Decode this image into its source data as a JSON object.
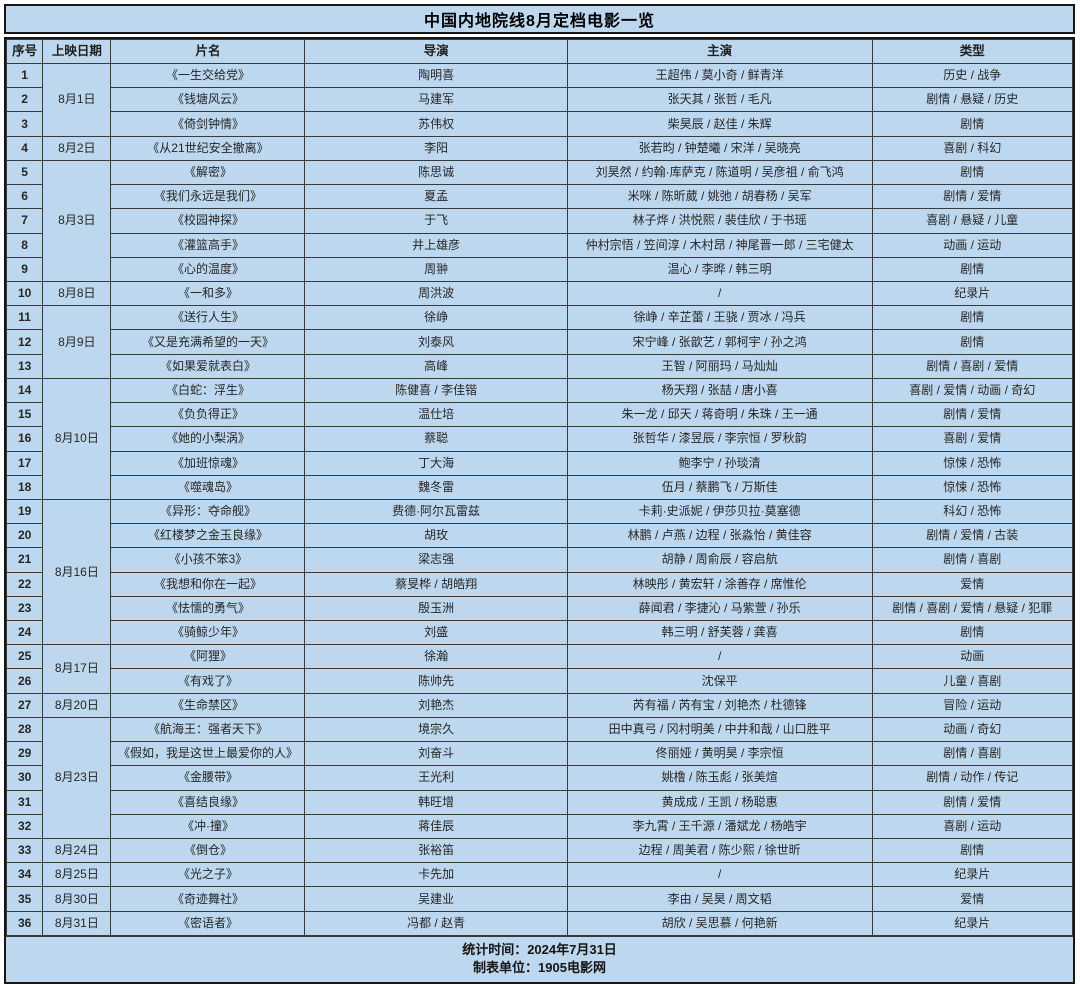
{
  "title": "中国内地院线8月定档电影一览",
  "footer": {
    "line1": "统计时间：2024年7月31日",
    "line2": "制表单位：1905电影网"
  },
  "colors": {
    "cell_background": "#bdd7ee",
    "border": "#161616",
    "inner_border": "#3a3a3a",
    "text": "#262626",
    "page_background": "#ffffff"
  },
  "table": {
    "columns": [
      "序号",
      "上映日期",
      "片名",
      "导演",
      "主演",
      "类型"
    ],
    "rows": [
      {
        "no": "1",
        "date": "8月1日",
        "span": 3,
        "film": "《一生交给党》",
        "dir": "陶明喜",
        "cast": "王超伟 / 莫小奇 / 鲜青洋",
        "genre": "历史 / 战争"
      },
      {
        "no": "2",
        "date": null,
        "film": "《钱塘风云》",
        "dir": "马建军",
        "cast": "张天其 / 张哲 / 毛凡",
        "genre": "剧情 / 悬疑 / 历史"
      },
      {
        "no": "3",
        "date": null,
        "film": "《倚剑钟情》",
        "dir": "苏伟权",
        "cast": "柴昊辰 / 赵佳 / 朱辉",
        "genre": "剧情"
      },
      {
        "no": "4",
        "date": "8月2日",
        "span": 1,
        "film": "《从21世纪安全撤离》",
        "dir": "李阳",
        "cast": "张若昀 / 钟楚曦 / 宋洋 / 吴晓亮",
        "genre": "喜剧 / 科幻"
      },
      {
        "no": "5",
        "date": "8月3日",
        "span": 5,
        "film": "《解密》",
        "dir": "陈思诚",
        "cast": "刘昊然 / 约翰·库萨克 / 陈道明 / 吴彦祖 / 俞飞鸿",
        "genre": "剧情"
      },
      {
        "no": "6",
        "date": null,
        "film": "《我们永远是我们》",
        "dir": "夏孟",
        "cast": "米咪 / 陈昕葳 / 姚弛 / 胡春杨 / 吴军",
        "genre": "剧情 / 爱情"
      },
      {
        "no": "7",
        "date": null,
        "film": "《校园神探》",
        "dir": "于飞",
        "cast": "林子烨 / 洪悦熙 / 裴佳欣 / 于书瑶",
        "genre": "喜剧 / 悬疑 / 儿童"
      },
      {
        "no": "8",
        "date": null,
        "film": "《灌篮高手》",
        "dir": "井上雄彦",
        "cast": "仲村宗悟 / 笠间淳 / 木村昂 / 神尾晋一郎 / 三宅健太",
        "genre": "动画 / 运动"
      },
      {
        "no": "9",
        "date": null,
        "film": "《心的温度》",
        "dir": "周翀",
        "cast": "温心 / 李晔 / 韩三明",
        "genre": "剧情"
      },
      {
        "no": "10",
        "date": "8月8日",
        "span": 1,
        "film": "《一和多》",
        "dir": "周洪波",
        "cast": "/",
        "genre": "纪录片"
      },
      {
        "no": "11",
        "date": "8月9日",
        "span": 3,
        "film": "《送行人生》",
        "dir": "徐峥",
        "cast": "徐峥 / 辛芷蕾 / 王骁 / 贾冰 / 冯兵",
        "genre": "剧情"
      },
      {
        "no": "12",
        "date": null,
        "film": "《又是充满希望的一天》",
        "dir": "刘泰风",
        "cast": "宋宁峰 / 张歆艺 / 郭柯宇 / 孙之鸿",
        "genre": "剧情"
      },
      {
        "no": "13",
        "date": null,
        "film": "《如果爱就表白》",
        "dir": "高峰",
        "cast": "王智 / 阿丽玛 / 马灿灿",
        "genre": "剧情 / 喜剧 / 爱情"
      },
      {
        "no": "14",
        "date": "8月10日",
        "span": 5,
        "film": "《白蛇：浮生》",
        "dir": "陈健喜 / 李佳锴",
        "cast": "杨天翔 / 张喆 / 唐小喜",
        "genre": "喜剧 / 爱情 / 动画 / 奇幻"
      },
      {
        "no": "15",
        "date": null,
        "film": "《负负得正》",
        "dir": "温仕培",
        "cast": "朱一龙 / 邱天 / 蒋奇明 / 朱珠 / 王一通",
        "genre": "剧情 / 爱情"
      },
      {
        "no": "16",
        "date": null,
        "film": "《她的小梨涡》",
        "dir": "蔡聪",
        "cast": "张哲华 / 漆昱辰 / 李宗恒 / 罗秋韵",
        "genre": "喜剧 / 爱情"
      },
      {
        "no": "17",
        "date": null,
        "film": "《加班惊魂》",
        "dir": "丁大海",
        "cast": "鲍李宁 / 孙琰清",
        "genre": "惊悚 / 恐怖"
      },
      {
        "no": "18",
        "date": null,
        "film": "《噬魂岛》",
        "dir": "魏冬雷",
        "cast": "伍月 / 蔡鹏飞 / 万斯佳",
        "genre": "惊悚 / 恐怖"
      },
      {
        "no": "19",
        "date": "8月16日",
        "span": 6,
        "film": "《异形：夺命舰》",
        "dir": "费德·阿尔瓦雷兹",
        "cast": "卡莉·史派妮 / 伊莎贝拉·莫塞德",
        "genre": "科幻 / 恐怖"
      },
      {
        "no": "20",
        "date": null,
        "film": "《红楼梦之金玉良缘》",
        "dir": "胡玫",
        "cast": "林鹏 / 卢燕 / 边程 / 张淼怡 / 黄佳容",
        "genre": "剧情 / 爱情 / 古装"
      },
      {
        "no": "21",
        "date": null,
        "film": "《小孩不笨3》",
        "dir": "梁志强",
        "cast": "胡静 / 周俞辰 / 容启航",
        "genre": "剧情 / 喜剧"
      },
      {
        "no": "22",
        "date": null,
        "film": "《我想和你在一起》",
        "dir": "蔡旻桦 / 胡皓翔",
        "cast": "林映彤 / 黄宏轩 / 涂善存 / 席惟伦",
        "genre": "爱情"
      },
      {
        "no": "23",
        "date": null,
        "film": "《怯懦的勇气》",
        "dir": "殷玉洲",
        "cast": "薛闻君 / 李捷沁 / 马紫萱 / 孙乐",
        "genre": "剧情 / 喜剧 / 爱情 / 悬疑 / 犯罪"
      },
      {
        "no": "24",
        "date": null,
        "film": "《骑鲸少年》",
        "dir": "刘盛",
        "cast": "韩三明 / 舒芙蓉 / 龚喜",
        "genre": "剧情"
      },
      {
        "no": "25",
        "date": "8月17日",
        "span": 2,
        "film": "《阿狸》",
        "dir": "徐瀚",
        "cast": "/",
        "genre": "动画"
      },
      {
        "no": "26",
        "date": null,
        "film": "《有戏了》",
        "dir": "陈帅先",
        "cast": "沈保平",
        "genre": "儿童 / 喜剧"
      },
      {
        "no": "27",
        "date": "8月20日",
        "span": 1,
        "film": "《生命禁区》",
        "dir": "刘艳杰",
        "cast": "芮有福 / 芮有宝 / 刘艳杰 / 杜德锋",
        "genre": "冒险 / 运动"
      },
      {
        "no": "28",
        "date": "8月23日",
        "span": 5,
        "film": "《航海王：强者天下》",
        "dir": "境宗久",
        "cast": "田中真弓 / 冈村明美 / 中井和哉 / 山口胜平",
        "genre": "动画 / 奇幻"
      },
      {
        "no": "29",
        "date": null,
        "film": "《假如，我是这世上最爱你的人》",
        "dir": "刘奋斗",
        "cast": "佟丽娅 / 黄明昊 / 李宗恒",
        "genre": "剧情 / 喜剧"
      },
      {
        "no": "30",
        "date": null,
        "film": "《金腰带》",
        "dir": "王光利",
        "cast": "姚橹 / 陈玉彪 / 张美煊",
        "genre": "剧情 / 动作 / 传记"
      },
      {
        "no": "31",
        "date": null,
        "film": "《喜结良缘》",
        "dir": "韩旺增",
        "cast": "黄成成 / 王凯 / 杨聪惠",
        "genre": "剧情 / 爱情"
      },
      {
        "no": "32",
        "date": null,
        "film": "《冲·撞》",
        "dir": "蒋佳辰",
        "cast": "李九霄 / 王千源 / 潘斌龙 / 杨皓宇",
        "genre": "喜剧 / 运动"
      },
      {
        "no": "33",
        "date": "8月24日",
        "span": 1,
        "film": "《倒仓》",
        "dir": "张裕笛",
        "cast": "边程 / 周美君 / 陈少熙 / 徐世昕",
        "genre": "剧情"
      },
      {
        "no": "34",
        "date": "8月25日",
        "span": 1,
        "film": "《光之子》",
        "dir": "卡先加",
        "cast": "/",
        "genre": "纪录片"
      },
      {
        "no": "35",
        "date": "8月30日",
        "span": 1,
        "film": "《奇迹舞社》",
        "dir": "吴建业",
        "cast": "李由 / 吴昊 / 周文韬",
        "genre": "爱情"
      },
      {
        "no": "36",
        "date": "8月31日",
        "span": 1,
        "film": "《密语者》",
        "dir": "冯都 / 赵青",
        "cast": "胡欣 / 吴思慕 / 何艳新",
        "genre": "纪录片"
      }
    ]
  }
}
